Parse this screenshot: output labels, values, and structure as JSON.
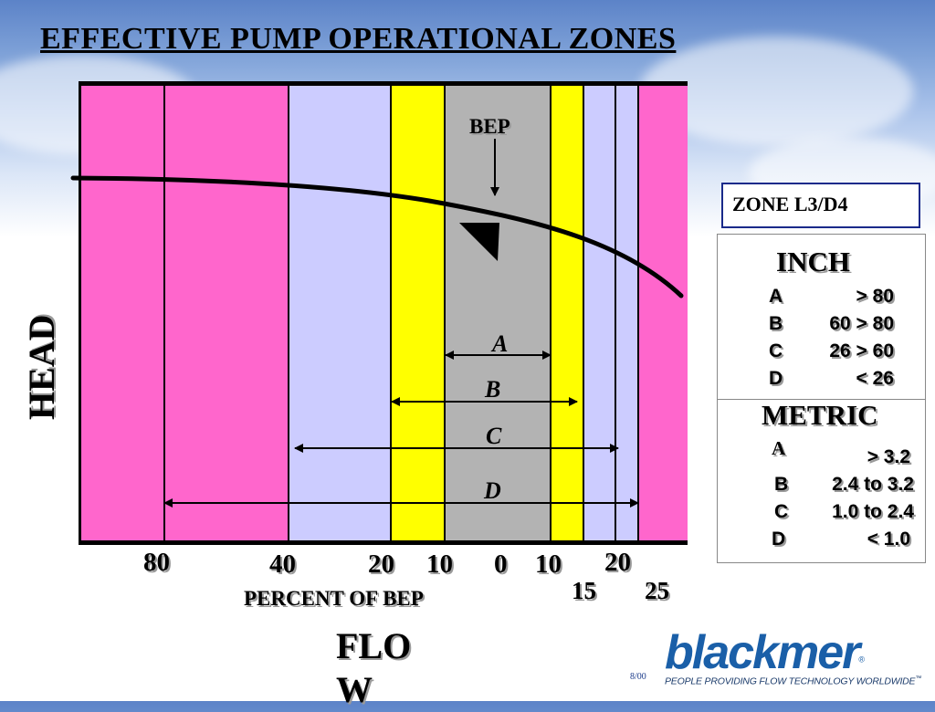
{
  "slide": {
    "title": "EFFECTIVE PUMP OPERATIONAL ZONES",
    "date": "8/00"
  },
  "colors": {
    "outer_zone": "#ff66cc",
    "zone_c": "#ccccff",
    "zone_b": "#ffff00",
    "zone_a": "#b3b3b3",
    "title_border": "#1a2a8a",
    "brand": "#1a5fa8"
  },
  "chart": {
    "bep_label": "BEP",
    "y_axis_label": "HEAD",
    "x_axis_label": "PERCENT OF BEP",
    "flow_label": "FLOW",
    "zone_labels": {
      "a": "A",
      "b": "B",
      "c": "C",
      "d": "D"
    },
    "ticks": {
      "left_80": "80",
      "left_40": "40",
      "left_20": "20",
      "left_10": "10",
      "center_0": "0",
      "right_10": "10",
      "right_20": "20",
      "right_15": "15",
      "right_25": "25"
    }
  },
  "zone_box": {
    "label": "ZONE L3/D4"
  },
  "legend": {
    "inch": {
      "heading": "INCH",
      "rows": [
        {
          "zone": "A",
          "range": "> 80"
        },
        {
          "zone": "B",
          "range": "60 > 80"
        },
        {
          "zone": "C",
          "range": "26 > 60"
        },
        {
          "zone": "D",
          "range": "< 26"
        }
      ]
    },
    "metric": {
      "heading": "METRIC",
      "rows": [
        {
          "zone": "A",
          "range": "> 3.2"
        },
        {
          "zone": "B",
          "range": "2.4 to 3.2"
        },
        {
          "zone": "C",
          "range": "1.0 to 2.4"
        },
        {
          "zone": "D",
          "range": "< 1.0"
        }
      ]
    }
  },
  "logo": {
    "wordmark": "blackmer",
    "registered": "®",
    "tagline": "PEOPLE PROVIDING FLOW TECHNOLOGY WORLDWIDE",
    "trademark": "™"
  }
}
